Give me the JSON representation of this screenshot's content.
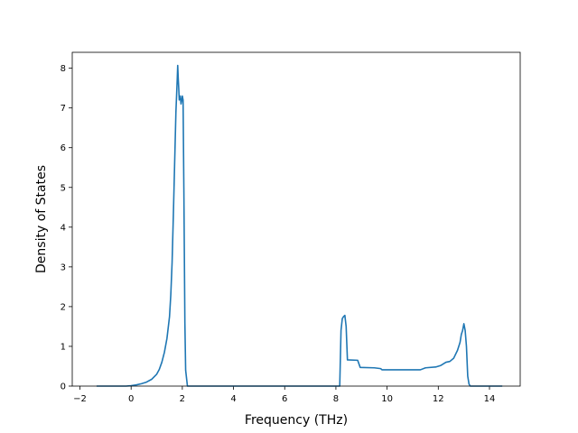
{
  "chart_data": {
    "type": "line",
    "title": "",
    "xlabel": "Frequency (THz)",
    "ylabel": "Density of States",
    "xlim": [
      -2.3,
      15.2
    ],
    "ylim": [
      0,
      8.4
    ],
    "xticks": [
      -2,
      0,
      2,
      4,
      6,
      8,
      10,
      12,
      14
    ],
    "yticks": [
      0,
      1,
      2,
      3,
      4,
      5,
      6,
      7,
      8
    ],
    "grid": false,
    "legend": "none",
    "line_color": "#1f77b4",
    "series": [
      {
        "x": [
          -1.35,
          -0.2,
          0.0,
          0.2,
          0.4,
          0.6,
          0.8,
          1.0,
          1.1,
          1.2,
          1.3,
          1.4,
          1.5,
          1.55,
          1.6,
          1.65,
          1.7,
          1.75,
          1.8,
          1.82,
          1.84,
          1.86,
          1.88,
          1.9,
          1.92,
          1.95,
          1.98,
          2.0,
          2.03,
          2.06,
          2.1,
          2.13,
          2.2,
          4.0,
          6.0,
          8.0,
          8.15,
          8.2,
          8.25,
          8.3,
          8.35,
          8.4,
          8.45,
          8.85,
          8.95,
          9.5,
          9.75,
          9.8,
          10.5,
          11.3,
          11.5,
          11.9,
          12.1,
          12.3,
          12.45,
          12.6,
          12.75,
          12.85,
          12.9,
          12.95,
          13.0,
          13.05,
          13.1,
          13.15,
          13.2,
          13.25,
          14.5
        ],
        "y": [
          0,
          0,
          0.01,
          0.03,
          0.06,
          0.1,
          0.17,
          0.3,
          0.42,
          0.6,
          0.85,
          1.2,
          1.75,
          2.3,
          3.1,
          4.3,
          5.6,
          6.9,
          7.7,
          8.07,
          7.75,
          7.5,
          7.2,
          7.25,
          7.3,
          7.1,
          7.2,
          7.3,
          7.2,
          5.0,
          1.6,
          0.4,
          0,
          0,
          0,
          0,
          0,
          1.4,
          1.7,
          1.75,
          1.78,
          1.5,
          0.66,
          0.65,
          0.47,
          0.46,
          0.44,
          0.41,
          0.41,
          0.41,
          0.46,
          0.48,
          0.52,
          0.6,
          0.62,
          0.7,
          0.9,
          1.1,
          1.3,
          1.4,
          1.57,
          1.4,
          1.0,
          0.25,
          0.05,
          0,
          0
        ]
      }
    ]
  }
}
